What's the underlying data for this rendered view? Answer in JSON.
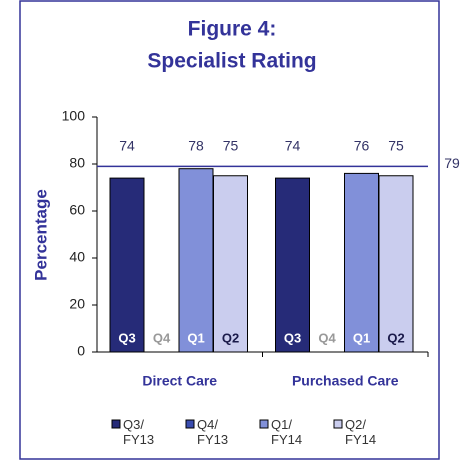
{
  "chart_data": {
    "type": "bar",
    "title": "Figure 4:",
    "subtitle": "Specialist Rating",
    "ylabel": "Percentage",
    "categories": [
      "Direct Care",
      "Purchased Care"
    ],
    "series": [
      {
        "name": "Q3/ FY13",
        "short": "Q3",
        "color": "#262b78",
        "label_color": "#ffffff",
        "values": [
          74,
          74
        ]
      },
      {
        "name": "Q4/ FY13",
        "short": "Q4",
        "color": "#3a4db0",
        "label_color": "#999999",
        "values": [
          null,
          null
        ]
      },
      {
        "name": "Q1/ FY14",
        "short": "Q1",
        "color": "#8190d9",
        "label_color": "#ffffff",
        "values": [
          78,
          76
        ]
      },
      {
        "name": "Q2/ FY14",
        "short": "Q2",
        "color": "#cacdee",
        "label_color": "#1a1a4a",
        "values": [
          75,
          75
        ]
      }
    ],
    "reference_line": {
      "value": 79,
      "color": "#333399"
    },
    "ylim": [
      0,
      100
    ],
    "yticks": [
      0,
      20,
      40,
      60,
      80,
      100
    ]
  }
}
